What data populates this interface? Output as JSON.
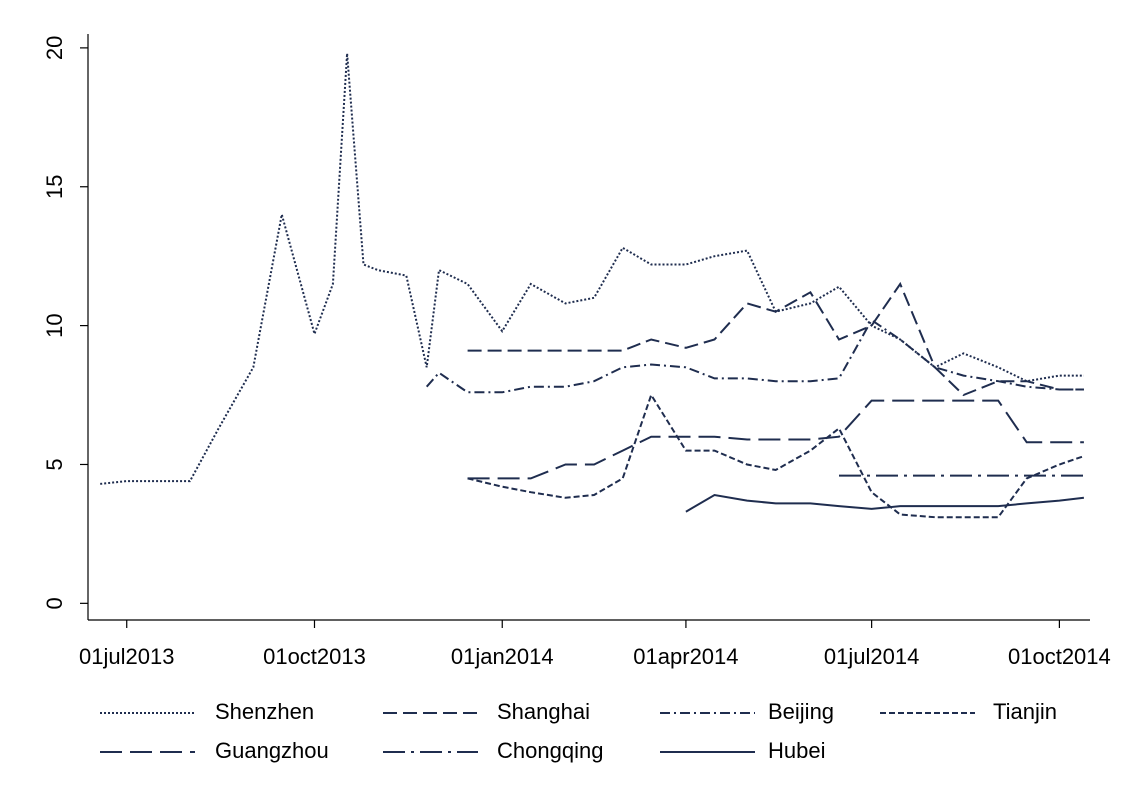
{
  "chart_data": {
    "type": "line",
    "x": [
      "2013-06-18",
      "2013-07-01",
      "2013-07-15",
      "2013-08-01",
      "2013-08-15",
      "2013-09-01",
      "2013-09-15",
      "2013-10-01",
      "2013-10-10",
      "2013-10-17",
      "2013-10-25",
      "2013-11-01",
      "2013-11-15",
      "2013-11-25",
      "2013-12-01",
      "2013-12-15",
      "2014-01-01",
      "2014-01-15",
      "2014-02-01",
      "2014-02-15",
      "2014-03-01",
      "2014-03-15",
      "2014-04-01",
      "2014-04-15",
      "2014-05-01",
      "2014-05-15",
      "2014-06-01",
      "2014-06-15",
      "2014-07-01",
      "2014-07-15",
      "2014-08-01",
      "2014-08-15",
      "2014-09-01",
      "2014-09-15",
      "2014-10-01",
      "2014-10-13"
    ],
    "series": [
      {
        "name": "Shenzhen",
        "color": "#1f2d4f",
        "dash": "2,2",
        "values": [
          4.3,
          4.4,
          4.4,
          4.4,
          6.3,
          8.5,
          14.0,
          9.7,
          11.5,
          19.8,
          12.2,
          12.0,
          11.8,
          8.5,
          12.0,
          11.5,
          9.8,
          11.5,
          10.8,
          11.0,
          12.8,
          12.2,
          12.2,
          12.5,
          12.7,
          10.5,
          10.8,
          11.4,
          10.0,
          9.5,
          8.5,
          9.0,
          8.5,
          8.0,
          8.2,
          8.2
        ]
      },
      {
        "name": "Shanghai",
        "color": "#1f2d4f",
        "dash": "14,6",
        "values": [
          null,
          null,
          null,
          null,
          null,
          null,
          null,
          null,
          null,
          null,
          null,
          null,
          null,
          null,
          null,
          9.1,
          9.1,
          9.1,
          9.1,
          9.1,
          9.1,
          9.5,
          9.2,
          9.5,
          10.8,
          10.5,
          11.2,
          9.5,
          10.0,
          11.5,
          8.5,
          7.5,
          8.0,
          8.0,
          7.7,
          7.7
        ]
      },
      {
        "name": "Beijing",
        "color": "#1f2d4f",
        "dash": "10,4,2,4",
        "values": [
          null,
          null,
          null,
          null,
          null,
          null,
          null,
          null,
          null,
          null,
          null,
          null,
          null,
          7.8,
          8.3,
          7.6,
          7.6,
          7.8,
          7.8,
          8.0,
          8.5,
          8.6,
          8.5,
          8.1,
          8.1,
          8.0,
          8.0,
          8.1,
          10.2,
          9.5,
          8.5,
          8.2,
          8.0,
          7.8,
          7.7,
          7.7
        ]
      },
      {
        "name": "Tianjin",
        "color": "#1f2d4f",
        "dash": "6,3",
        "values": [
          null,
          null,
          null,
          null,
          null,
          null,
          null,
          null,
          null,
          null,
          null,
          null,
          null,
          null,
          null,
          4.5,
          4.2,
          4.0,
          3.8,
          3.9,
          4.5,
          7.5,
          5.5,
          5.5,
          5.0,
          4.8,
          5.5,
          6.3,
          4.0,
          3.2,
          3.1,
          3.1,
          3.1,
          4.5,
          5.0,
          5.3
        ]
      },
      {
        "name": "Guangzhou",
        "color": "#1f2d4f",
        "dash": "22,8",
        "values": [
          null,
          null,
          null,
          null,
          null,
          null,
          null,
          null,
          null,
          null,
          null,
          null,
          null,
          null,
          null,
          4.5,
          4.5,
          4.5,
          5.0,
          5.0,
          5.5,
          6.0,
          6.0,
          6.0,
          5.9,
          5.9,
          5.9,
          6.0,
          7.3,
          7.3,
          7.3,
          7.3,
          7.3,
          5.8,
          5.8,
          5.8
        ]
      },
      {
        "name": "Chongqing",
        "color": "#1f2d4f",
        "dash": "22,6,3,6",
        "values": [
          null,
          null,
          null,
          null,
          null,
          null,
          null,
          null,
          null,
          null,
          null,
          null,
          null,
          null,
          null,
          null,
          null,
          null,
          null,
          null,
          null,
          null,
          null,
          null,
          null,
          null,
          null,
          4.6,
          4.6,
          4.6,
          4.6,
          4.6,
          4.6,
          4.6,
          4.6,
          4.6
        ]
      },
      {
        "name": "Hubei",
        "color": "#1f2d4f",
        "dash": "none",
        "values": [
          null,
          null,
          null,
          null,
          null,
          null,
          null,
          null,
          null,
          null,
          null,
          null,
          null,
          null,
          null,
          null,
          null,
          null,
          null,
          null,
          null,
          null,
          3.3,
          3.9,
          3.7,
          3.6,
          3.6,
          3.5,
          3.4,
          3.5,
          3.5,
          3.5,
          3.5,
          3.6,
          3.7,
          3.8
        ]
      }
    ],
    "xlim": [
      "2013-06-13",
      "2014-10-16"
    ],
    "xticks": [
      {
        "value": "2013-07-01",
        "label": "01jul2013"
      },
      {
        "value": "2013-10-01",
        "label": "01oct2013"
      },
      {
        "value": "2014-01-01",
        "label": "01jan2014"
      },
      {
        "value": "2014-04-01",
        "label": "01apr2014"
      },
      {
        "value": "2014-07-01",
        "label": "01jul2014"
      },
      {
        "value": "2014-10-01",
        "label": "01oct2014"
      }
    ],
    "ylim": [
      -0.6,
      20.5
    ],
    "yticks": [
      0,
      5,
      10,
      15,
      20
    ],
    "grid": false,
    "legend": "bottom"
  }
}
